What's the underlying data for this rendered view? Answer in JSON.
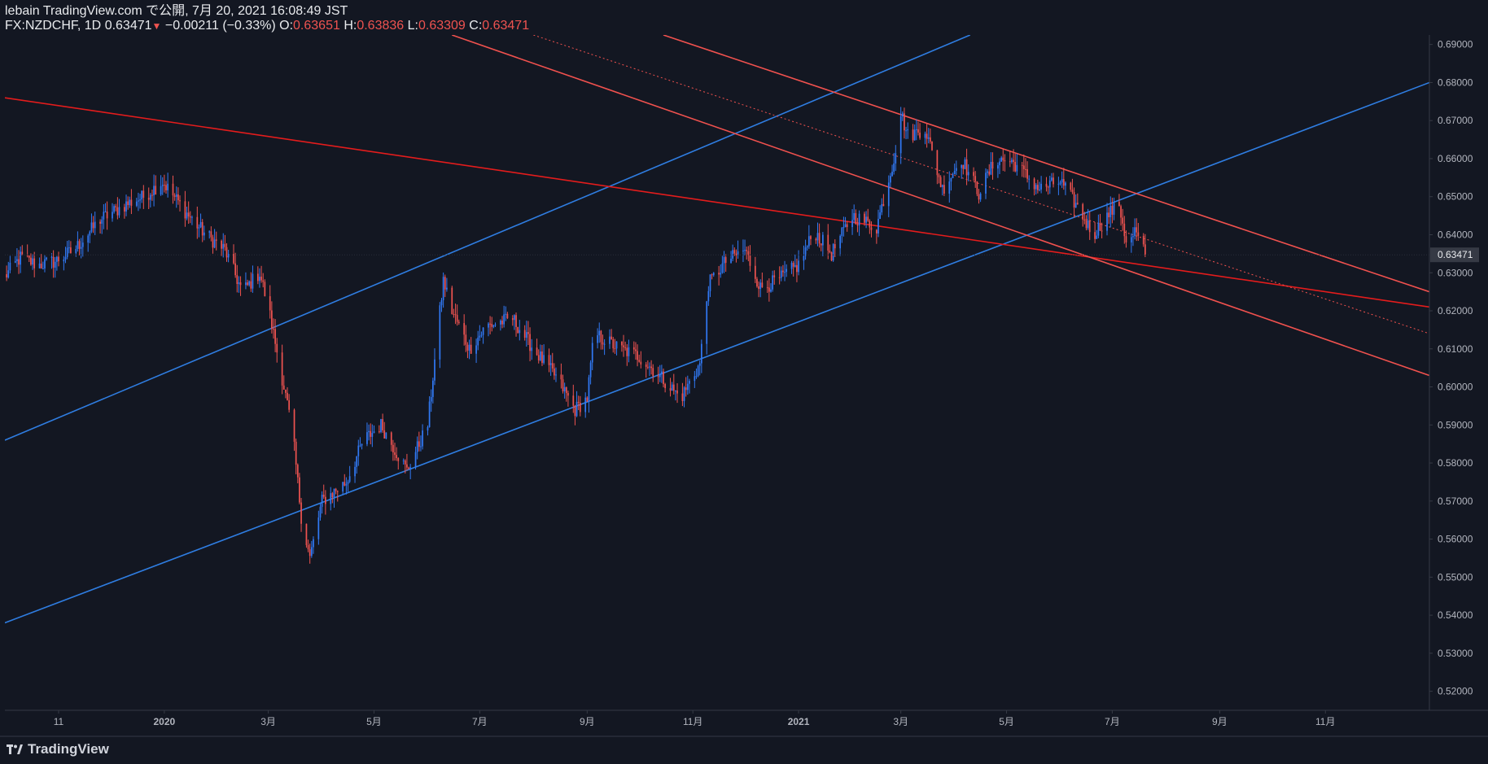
{
  "header": {
    "line1": "lebain TradingView.com で公開, 7月 20, 2021 16:08:49 JST",
    "symbol": "FX:NZDCHF, 1D",
    "last": "0.63471",
    "change_icon": "down-triangle-icon",
    "change": "−0.00211 (−0.33%)",
    "o_label": "O:",
    "o_value": "0.63651",
    "h_label": "H:",
    "h_value": "0.63836",
    "l_label": "L:",
    "l_value": "0.63309",
    "c_label": "C:",
    "c_value": "0.63471"
  },
  "footer": {
    "logo_text": "TradingView",
    "logo_icon": "tradingview-logo-icon"
  },
  "colors": {
    "background": "#131722",
    "up": "#2962ff",
    "up_candle": "#3179f5",
    "down_candle": "#ef5350",
    "channel_blue": "#2f7de1",
    "channel_red": "#f0514e",
    "trend_red": "#e41c1c",
    "axis_text": "#b2b5be",
    "grid_line": "#363a45"
  },
  "chart_data": {
    "type": "candlestick",
    "title": "",
    "xlabel": "",
    "ylabel": "",
    "ylim": [
      0.515,
      0.6925
    ],
    "y_ticks": [
      "0.69000",
      "0.68000",
      "0.67000",
      "0.66000",
      "0.65000",
      "0.64000",
      "0.63000",
      "0.62000",
      "0.61000",
      "0.60000",
      "0.59000",
      "0.58000",
      "0.57000",
      "0.56000",
      "0.55000",
      "0.54000",
      "0.53000",
      "0.52000"
    ],
    "x_ticks": [
      "11",
      "2020",
      "3月",
      "5月",
      "7月",
      "9月",
      "11月",
      "2021",
      "3月",
      "5月",
      "7月",
      "9月",
      "11月"
    ],
    "x_tick_dates": [
      "2019-11-01",
      "2020-01-01",
      "2020-03-01",
      "2020-05-01",
      "2020-07-01",
      "2020-09-01",
      "2020-11-01",
      "2021-01-01",
      "2021-03-01",
      "2021-05-01",
      "2021-07-01",
      "2021-09-01",
      "2021-11-01"
    ],
    "last_price_label": "0.63471",
    "last_price": 0.63471,
    "price_path": [
      [
        "2019-10-01",
        0.629
      ],
      [
        "2019-10-10",
        0.634
      ],
      [
        "2019-10-20",
        0.632
      ],
      [
        "2019-10-30",
        0.633
      ],
      [
        "2019-11-10",
        0.636
      ],
      [
        "2019-11-25",
        0.644
      ],
      [
        "2019-12-10",
        0.648
      ],
      [
        "2019-12-20",
        0.65
      ],
      [
        "2019-12-31",
        0.654
      ],
      [
        "2020-01-15",
        0.645
      ],
      [
        "2020-01-25",
        0.64
      ],
      [
        "2020-02-05",
        0.636
      ],
      [
        "2020-02-15",
        0.625
      ],
      [
        "2020-02-25",
        0.63
      ],
      [
        "2020-03-01",
        0.621
      ],
      [
        "2020-03-10",
        0.6
      ],
      [
        "2020-03-15",
        0.588
      ],
      [
        "2020-03-20",
        0.566
      ],
      [
        "2020-03-25",
        0.555
      ],
      [
        "2020-04-01",
        0.57
      ],
      [
        "2020-04-15",
        0.575
      ],
      [
        "2020-04-25",
        0.586
      ],
      [
        "2020-05-05",
        0.59
      ],
      [
        "2020-05-15",
        0.582
      ],
      [
        "2020-05-20",
        0.578
      ],
      [
        "2020-06-01",
        0.59
      ],
      [
        "2020-06-10",
        0.628
      ],
      [
        "2020-06-15",
        0.62
      ],
      [
        "2020-06-25",
        0.61
      ],
      [
        "2020-07-05",
        0.616
      ],
      [
        "2020-07-20",
        0.618
      ],
      [
        "2020-08-01",
        0.61
      ],
      [
        "2020-08-15",
        0.602
      ],
      [
        "2020-08-25",
        0.594
      ],
      [
        "2020-09-01",
        0.597
      ],
      [
        "2020-09-05",
        0.614
      ],
      [
        "2020-09-20",
        0.61
      ],
      [
        "2020-10-01",
        0.608
      ],
      [
        "2020-10-15",
        0.602
      ],
      [
        "2020-10-25",
        0.597
      ],
      [
        "2020-11-05",
        0.606
      ],
      [
        "2020-11-10",
        0.627
      ],
      [
        "2020-11-20",
        0.633
      ],
      [
        "2020-12-01",
        0.636
      ],
      [
        "2020-12-10",
        0.626
      ],
      [
        "2020-12-20",
        0.628
      ],
      [
        "2021-01-01",
        0.632
      ],
      [
        "2021-01-10",
        0.641
      ],
      [
        "2021-01-20",
        0.635
      ],
      [
        "2021-02-01",
        0.645
      ],
      [
        "2021-02-15",
        0.642
      ],
      [
        "2021-02-25",
        0.66
      ],
      [
        "2021-03-01",
        0.672
      ],
      [
        "2021-03-05",
        0.666
      ],
      [
        "2021-03-15",
        0.668
      ],
      [
        "2021-03-25",
        0.652
      ],
      [
        "2021-04-05",
        0.66
      ],
      [
        "2021-04-15",
        0.651
      ],
      [
        "2021-04-25",
        0.66
      ],
      [
        "2021-05-05",
        0.659
      ],
      [
        "2021-05-20",
        0.652
      ],
      [
        "2021-06-01",
        0.654
      ],
      [
        "2021-06-10",
        0.648
      ],
      [
        "2021-06-20",
        0.64
      ],
      [
        "2021-06-30",
        0.646
      ],
      [
        "2021-07-05",
        0.648
      ],
      [
        "2021-07-10",
        0.636
      ],
      [
        "2021-07-14",
        0.641
      ],
      [
        "2021-07-20",
        0.6347
      ]
    ],
    "trendlines": [
      {
        "color": "channel_blue",
        "style": "solid",
        "p1": [
          "2019-10-01",
          0.586
        ],
        "p2": [
          "2021-04-10",
          0.6925
        ]
      },
      {
        "color": "channel_blue",
        "style": "solid",
        "p1": [
          "2019-10-01",
          0.538
        ],
        "p2": [
          "2021-12-31",
          0.68
        ]
      },
      {
        "color": "trend_red",
        "style": "solid",
        "p1": [
          "2019-10-01",
          0.676
        ],
        "p2": [
          "2021-12-31",
          0.621
        ]
      },
      {
        "color": "channel_red",
        "style": "solid",
        "p1": [
          "2020-06-15",
          0.6925
        ],
        "p2": [
          "2021-12-31",
          0.603
        ]
      },
      {
        "color": "channel_red",
        "style": "solid",
        "p1": [
          "2020-10-15",
          0.6925
        ],
        "p2": [
          "2021-12-31",
          0.625
        ]
      },
      {
        "color": "channel_red",
        "style": "dotted",
        "p1": [
          "2020-08-01",
          0.6925
        ],
        "p2": [
          "2021-12-31",
          0.614
        ]
      }
    ],
    "grid": false,
    "legend": "none"
  }
}
